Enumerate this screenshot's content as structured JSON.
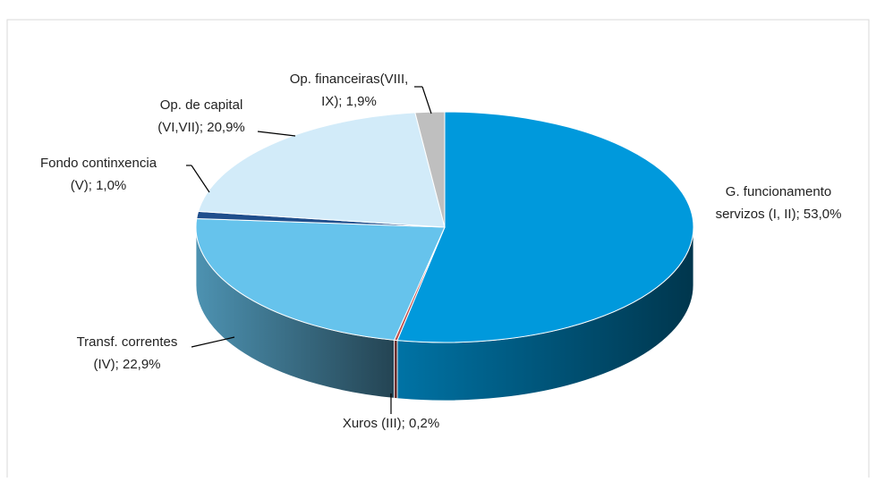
{
  "chart_data": {
    "type": "pie3d",
    "labels": [
      [
        "G. funcionamento",
        "servizos (I, II); 53,0%"
      ],
      [
        "Xuros (III); 0,2%"
      ],
      [
        "Transf. correntes",
        "(IV); 22,9%"
      ],
      [
        "Fondo continxencia",
        "(V); 1,0%"
      ],
      [
        "Op. de capital",
        "(VI,VII); 20,9%"
      ],
      [
        "Op. financeiras(VIII,",
        "IX); 1,9%"
      ]
    ],
    "values": [
      53.0,
      0.2,
      22.9,
      1.0,
      20.9,
      1.9
    ],
    "colors": [
      "#0099dc",
      "#c0504d",
      "#66c3ec",
      "#1f4e8c",
      "#d2ebf9",
      "#bfbfbf"
    ]
  }
}
